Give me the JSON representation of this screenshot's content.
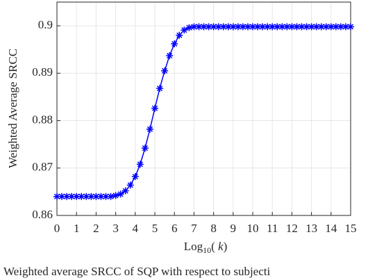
{
  "chart_data": {
    "type": "line",
    "ylabel": "Weighted Average SRCC",
    "xlabel": [
      "Log",
      "10",
      "( ",
      "k",
      ")"
    ],
    "caption": "Weighted average SRCC of SQP with respect to subjecti",
    "x": [
      0,
      0.25,
      0.5,
      0.75,
      1,
      1.25,
      1.5,
      1.75,
      2,
      2.25,
      2.5,
      2.75,
      3,
      3.25,
      3.5,
      3.75,
      4,
      4.25,
      4.5,
      4.75,
      5,
      5.25,
      5.5,
      5.75,
      6,
      6.25,
      6.5,
      6.75,
      7,
      7.25,
      7.5,
      7.75,
      8,
      8.25,
      8.5,
      8.75,
      9,
      9.25,
      9.5,
      9.75,
      10,
      10.25,
      10.5,
      10.75,
      11,
      11.25,
      11.5,
      11.75,
      12,
      12.25,
      12.5,
      12.75,
      13,
      13.25,
      13.5,
      13.75,
      14,
      14.25,
      14.5,
      14.75,
      15
    ],
    "series": [
      {
        "color": "#0000ff",
        "marker": "asterisk",
        "values": [
          0.864,
          0.864,
          0.864,
          0.864,
          0.864,
          0.864,
          0.864,
          0.864,
          0.864,
          0.864,
          0.864,
          0.864,
          0.8642,
          0.8645,
          0.8652,
          0.8664,
          0.8682,
          0.8708,
          0.8742,
          0.8782,
          0.8826,
          0.8868,
          0.8905,
          0.8937,
          0.8962,
          0.898,
          0.8991,
          0.8996,
          0.8998,
          0.8998,
          0.8998,
          0.8998,
          0.8998,
          0.8998,
          0.8998,
          0.8998,
          0.8998,
          0.8998,
          0.8998,
          0.8998,
          0.8998,
          0.8998,
          0.8998,
          0.8998,
          0.8998,
          0.8998,
          0.8998,
          0.8998,
          0.8998,
          0.8998,
          0.8998,
          0.8998,
          0.8998,
          0.8998,
          0.8998,
          0.8998,
          0.8998,
          0.8998,
          0.8998,
          0.8998,
          0.8998
        ]
      }
    ],
    "xlim": [
      0,
      15
    ],
    "xticks": [
      0,
      1,
      2,
      3,
      4,
      5,
      6,
      7,
      8,
      9,
      10,
      11,
      12,
      13,
      14,
      15
    ],
    "ylim": [
      0.86,
      0.905
    ],
    "yticks": [
      0.86,
      0.87,
      0.88,
      0.89,
      0.9
    ],
    "grid": true
  }
}
